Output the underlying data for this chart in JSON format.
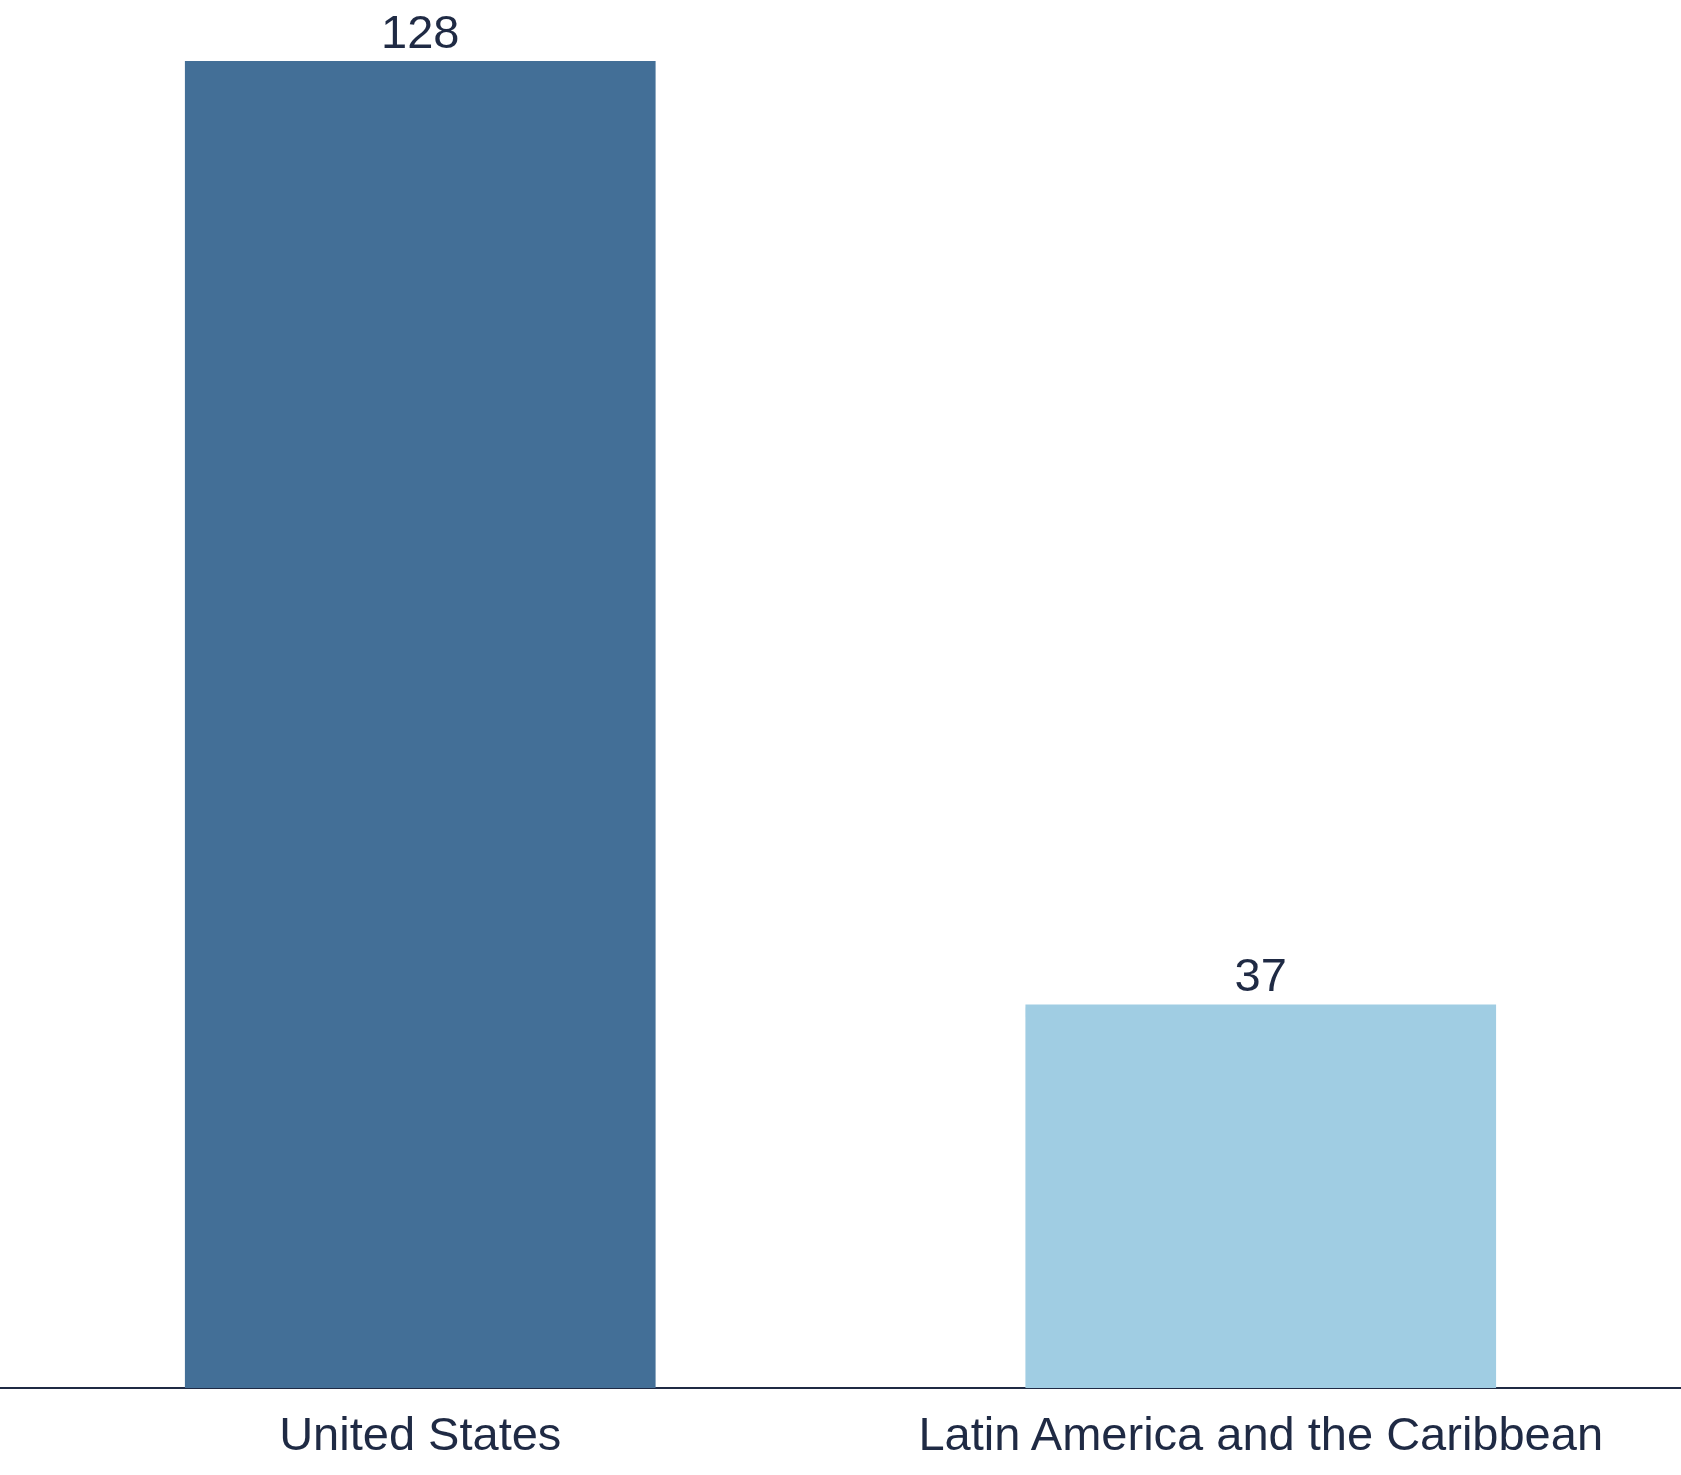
{
  "chart_data": {
    "type": "bar",
    "categories": [
      "United States",
      "Latin America and the Caribbean"
    ],
    "values": [
      128,
      37
    ],
    "colors": [
      "#436f97",
      "#a0cde3"
    ],
    "data_labels": true,
    "grid": false
  }
}
